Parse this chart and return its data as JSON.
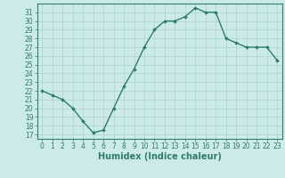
{
  "xlabel": "Humidex (Indice chaleur)",
  "x_values": [
    0,
    1,
    2,
    3,
    4,
    5,
    6,
    7,
    8,
    9,
    10,
    11,
    12,
    13,
    14,
    15,
    16,
    17,
    18,
    19,
    20,
    21,
    22,
    23
  ],
  "y_values": [
    22,
    21.5,
    21,
    20,
    18.5,
    17.2,
    17.5,
    20,
    22.5,
    24.5,
    27,
    29,
    30,
    30,
    30.5,
    31.5,
    31,
    31,
    28,
    27.5,
    27,
    27,
    27,
    25.5
  ],
  "yticks": [
    17,
    18,
    19,
    20,
    21,
    22,
    23,
    24,
    25,
    26,
    27,
    28,
    29,
    30,
    31
  ],
  "xticks": [
    0,
    1,
    2,
    3,
    4,
    5,
    6,
    7,
    8,
    9,
    10,
    11,
    12,
    13,
    14,
    15,
    16,
    17,
    18,
    19,
    20,
    21,
    22,
    23
  ],
  "line_color": "#2e7d6e",
  "marker": "D",
  "marker_size": 2.0,
  "bg_color": "#cceae7",
  "grid_color": "#aad4d0",
  "axis_color": "#2e7d6e",
  "tick_fontsize": 5.5,
  "label_fontsize": 7.0,
  "line_width": 1.0
}
